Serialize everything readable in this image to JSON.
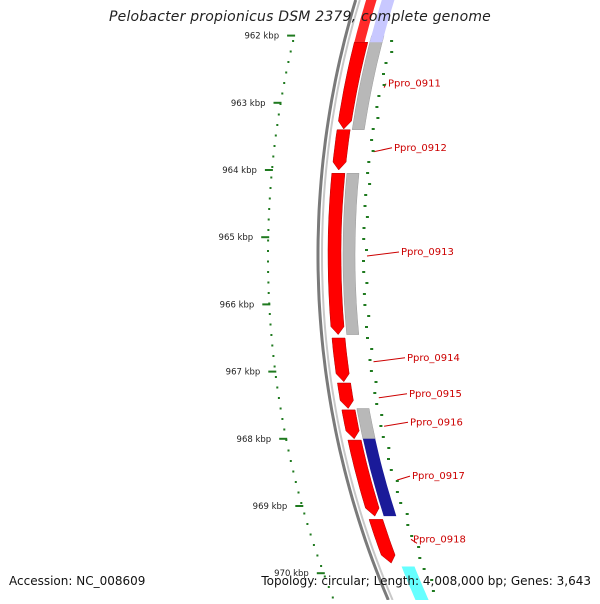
{
  "map": {
    "title": "Pelobacter propionicus DSM 2379, complete genome",
    "accession_text": "Accession: NC_008609",
    "summary_text": "Topology: circular; Length: 4,008,000 bp; Genes: 3,643",
    "colors": {
      "forward_gene": "#ff0000",
      "reverse_gene": "#b8b8b8",
      "highlight_gene": "#1a1a99",
      "cyan_gene": "#66ffff",
      "backbone": "#888888",
      "gc_dots": "#1f7a1f",
      "label": "#cc0000"
    },
    "scale": {
      "unit": "kbp",
      "ticks": [
        {
          "kbp": 962,
          "label": "962 kbp"
        },
        {
          "kbp": 963,
          "label": "963 kbp"
        },
        {
          "kbp": 964,
          "label": "964 kbp"
        },
        {
          "kbp": 965,
          "label": "965 kbp"
        },
        {
          "kbp": 966,
          "label": "966 kbp"
        },
        {
          "kbp": 967,
          "label": "967 kbp"
        },
        {
          "kbp": 968,
          "label": "968 kbp"
        },
        {
          "kbp": 969,
          "label": "969 kbp"
        },
        {
          "kbp": 970,
          "label": "970 kbp"
        }
      ]
    },
    "genes": [
      {
        "label": "Ppro_0911",
        "start_kbp": 962.1,
        "end_kbp": 963.39,
        "strand": "+",
        "track": "forward"
      },
      {
        "label": "Ppro_0912",
        "start_kbp": 963.4,
        "end_kbp": 964.0,
        "strand": "+",
        "track": "forward"
      },
      {
        "label": "Ppro_0913",
        "start_kbp": 964.05,
        "end_kbp": 966.45,
        "strand": "+",
        "track": "forward"
      },
      {
        "label": "Ppro_0914",
        "start_kbp": 966.5,
        "end_kbp": 967.15,
        "strand": "+",
        "track": "forward"
      },
      {
        "label": "Ppro_0915",
        "start_kbp": 967.17,
        "end_kbp": 967.55,
        "strand": "+",
        "track": "forward"
      },
      {
        "label": "Ppro_0916",
        "start_kbp": 967.57,
        "end_kbp": 968.0,
        "strand": "+",
        "track": "forward"
      },
      {
        "label": "Ppro_0917",
        "start_kbp": 968.02,
        "end_kbp": 969.15,
        "strand": "+",
        "track": "forward"
      },
      {
        "label": "Ppro_0918",
        "start_kbp": 969.2,
        "end_kbp": 969.85,
        "strand": "+",
        "track": "forward"
      }
    ],
    "reverse_blocks": [
      {
        "start_kbp": 962.0,
        "end_kbp": 963.4
      },
      {
        "start_kbp": 964.05,
        "end_kbp": 966.45
      },
      {
        "start_kbp": 967.55,
        "end_kbp": 968.0
      }
    ],
    "highlight_blocks": [
      {
        "start_kbp": 968.0,
        "end_kbp": 969.15
      }
    ],
    "cyan_blocks": [
      {
        "start_kbp": 969.9,
        "end_kbp": 970.5
      }
    ]
  }
}
